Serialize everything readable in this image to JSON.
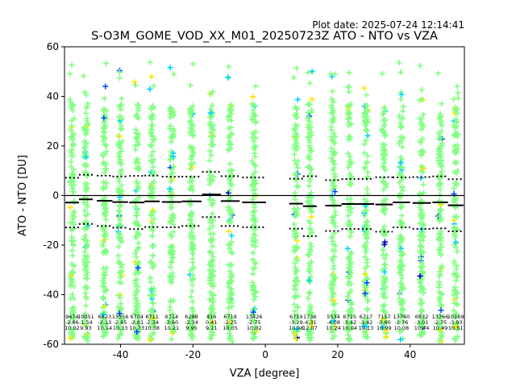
{
  "plot_date": "Plot date: 2025-07-24 12:14:41",
  "chart_data": {
    "type": "scatter",
    "title": "S-O3M_GOME_VOD_XX_M01_20250723Z ATO - NTO vs VZA",
    "xlabel": "VZA [degree]",
    "ylabel": "ATO - NTO [DU]",
    "xlim": [
      -55.5,
      55
    ],
    "ylim": [
      -60,
      60
    ],
    "xticks": [
      -40,
      -20,
      0,
      20,
      40
    ],
    "yticks": [
      -60,
      -40,
      -20,
      0,
      20,
      40,
      60
    ],
    "grid": false,
    "marker": "+",
    "colors": {
      "cloud": "#80ff80",
      "mid": "#ffe600",
      "cyan": "#00d4ff",
      "blue": "#0050ff",
      "navy": "#0000c8"
    },
    "bins": [
      {
        "vza": -53.4,
        "count": 9474,
        "mean": -2.86,
        "mean_label": "-2.86",
        "std": 10.02
      },
      {
        "vza": -49.6,
        "count": 10051,
        "mean": -1.54,
        "mean_label": "-1.54",
        "std": 9.93
      },
      {
        "vza": -44.4,
        "count": 6623,
        "mean": -2.13,
        "mean_label": "-2.13",
        "std": 10.14
      },
      {
        "vza": -40.1,
        "count": 13356,
        "mean": -2.65,
        "mean_label": "-2.65",
        "std": 10.33
      },
      {
        "vza": -35.5,
        "count": 6704,
        "mean": -2.81,
        "mean_label": "-2.81",
        "std": 10.73
      },
      {
        "vza": -31.3,
        "count": 6711,
        "mean": -2.34,
        "mean_label": "-2.34",
        "std": 10.38
      },
      {
        "vza": -25.9,
        "count": 6714,
        "mean": -2.6,
        "mean_label": "-2.60",
        "std": 10.21
      },
      {
        "vza": -20.4,
        "count": 6298,
        "mean": -2.34,
        "mean_label": "-2.34",
        "std": 9.95
      },
      {
        "vza": -14.9,
        "count": 416,
        "mean": 0.41,
        "mean_label": "0.41",
        "std": 9.11
      },
      {
        "vza": -9.7,
        "count": 6718,
        "mean": -2.25,
        "mean_label": "-2.25",
        "std": 10.05
      },
      {
        "vza": -3.1,
        "count": 13426,
        "mean": -2.75,
        "mean_label": "-2.75",
        "std": 10.02
      },
      {
        "vza": 8.5,
        "count": 6714,
        "mean": -3.29,
        "mean_label": "-3.29",
        "std": 10.08
      },
      {
        "vza": 12.3,
        "count": 1736,
        "mean": -4.31,
        "mean_label": "-4.31",
        "std": 12.07
      },
      {
        "vza": 18.8,
        "count": 5534,
        "mean": -4.08,
        "mean_label": "-4.08",
        "std": 10.24
      },
      {
        "vza": 23.3,
        "count": 6715,
        "mean": -3.42,
        "mean_label": "-3.42",
        "std": 10.04
      },
      {
        "vza": 27.8,
        "count": 6717,
        "mean": -3.42,
        "mean_label": "-3.42",
        "std": 10.13
      },
      {
        "vza": 32.8,
        "count": 7157,
        "mean": -3.6,
        "mean_label": "-3.60",
        "std": 10.99
      },
      {
        "vza": 37.6,
        "count": 13760,
        "mean": -2.76,
        "mean_label": "-2.76",
        "std": 10.08
      },
      {
        "vza": 43.2,
        "count": 6832,
        "mean": -3.01,
        "mean_label": "-3.01",
        "std": 10.44
      },
      {
        "vza": 48.3,
        "count": 13766,
        "mean": -2.75,
        "mean_label": "-2.75",
        "std": 10.49
      },
      {
        "vza": 52.6,
        "count": 10169,
        "mean": -3.93,
        "mean_label": "-3.93",
        "std": 10.51
      }
    ]
  }
}
